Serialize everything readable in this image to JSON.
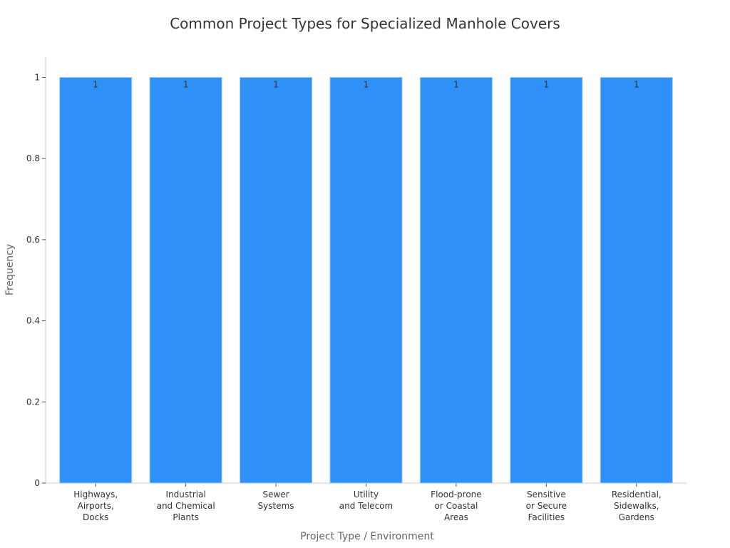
{
  "chart_data": {
    "type": "bar",
    "title": "Common Project Types for Specialized Manhole Covers",
    "xlabel": "Project Type / Environment",
    "ylabel": "Frequency",
    "ylim": [
      0,
      1.05
    ],
    "yticks": [
      0,
      0.2,
      0.4,
      0.6,
      0.8,
      1
    ],
    "ytick_labels": [
      "0",
      "0.2",
      "0.4",
      "0.6",
      "0.8",
      "1"
    ],
    "categories": [
      "Highways, Airports, Docks",
      "Industrial and Chemical Plants",
      "Sewer Systems",
      "Utility and Telecom",
      "Flood-prone or Coastal Areas",
      "Sensitive or Secure Facilities",
      "Residential, Sidewalks, Gardens"
    ],
    "category_lines": [
      [
        "Highways,",
        "Airports,",
        "Docks"
      ],
      [
        "Industrial",
        "and Chemical",
        "Plants"
      ],
      [
        "Sewer",
        "Systems"
      ],
      [
        "Utility",
        "and Telecom"
      ],
      [
        "Flood-prone",
        "or Coastal",
        "Areas"
      ],
      [
        "Sensitive",
        "or Secure",
        "Facilities"
      ],
      [
        "Residential,",
        "Sidewalks,",
        "Gardens"
      ]
    ],
    "values": [
      1,
      1,
      1,
      1,
      1,
      1,
      1
    ],
    "data_labels": [
      "1",
      "1",
      "1",
      "1",
      "1",
      "1",
      "1"
    ],
    "grid": false,
    "legend": "none",
    "colors": {
      "bar": "#2f90f7",
      "bar_edge": "#a9cdf5",
      "axis": "#cccccc",
      "text": "#333333",
      "label": "#666666"
    }
  }
}
